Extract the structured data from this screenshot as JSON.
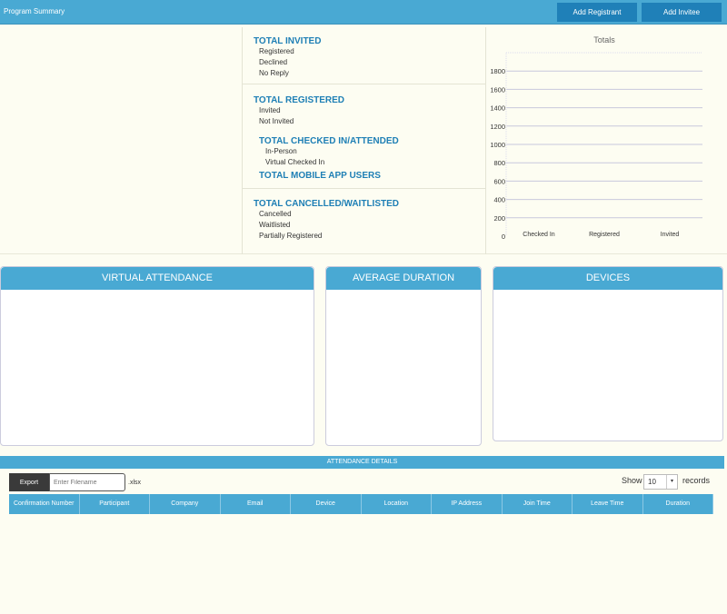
{
  "header": {
    "title": "Program Summary",
    "add_registrant": "Add Registrant",
    "add_invitee": "Add Invitee"
  },
  "summary": {
    "invited": {
      "title": "TOTAL INVITED",
      "items": [
        "Registered",
        "Declined",
        "No Reply"
      ]
    },
    "registered": {
      "title": "TOTAL REGISTERED",
      "items": [
        "Invited",
        "Not Invited"
      ]
    },
    "checked_in": {
      "title": "TOTAL CHECKED IN/ATTENDED",
      "items": [
        "In-Person",
        "Virtual Checked In"
      ]
    },
    "mobile": {
      "title": "TOTAL MOBILE APP USERS"
    },
    "cancelled": {
      "title": "TOTAL CANCELLED/WAITLISTED",
      "items": [
        "Cancelled",
        "Waitlisted",
        "Partially Registered"
      ]
    }
  },
  "chart_data": {
    "type": "bar",
    "title": "Totals",
    "categories": [
      "Checked In",
      "Registered",
      "Invited"
    ],
    "values": [
      0,
      0,
      0
    ],
    "yticks": [
      0,
      200,
      400,
      600,
      800,
      1000,
      1200,
      1400,
      1600,
      1800
    ],
    "ylim": [
      0,
      2000
    ],
    "grid": true,
    "xlabel": "",
    "ylabel": ""
  },
  "panels": {
    "virtual": "VIRTUAL ATTENDANCE",
    "duration": "AVERAGE DURATION",
    "devices": "DEVICES"
  },
  "details": {
    "title": "ATTENDANCE DETAILS",
    "export": "Export",
    "filename_placeholder": "Enter Filename",
    "ext": ".xlsx",
    "show": "Show",
    "page_size": "10",
    "records": "records",
    "columns": [
      "Confirmation Number",
      "Participant",
      "Company",
      "Email",
      "Device",
      "Location",
      "IP Address",
      "Join Time",
      "Leave Time",
      "Duration"
    ]
  },
  "colors": {
    "accent": "#49a9d3",
    "button": "#1f80b8",
    "heading": "#1e7fb5"
  }
}
